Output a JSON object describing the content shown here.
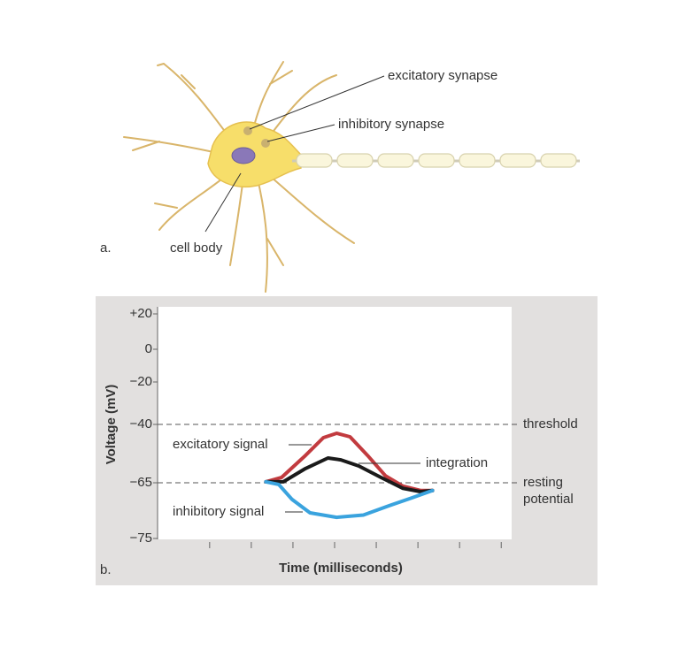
{
  "illustration": {
    "panel_label": "a.",
    "labels": [
      "excitatory synapse",
      "inhibitory synapse",
      "cell body"
    ]
  },
  "chart_data": {
    "type": "line",
    "panel_label": "b.",
    "xlabel": "Time (milliseconds)",
    "ylabel": "Voltage (mV)",
    "xlim": [
      -0.25,
      8.25
    ],
    "xticks": [
      1,
      2,
      3,
      4,
      5,
      6,
      7,
      8
    ],
    "ylim": [
      -75,
      20
    ],
    "yticks": [
      {
        "value": 20,
        "label": "+20"
      },
      0,
      {
        "value": -20,
        "label": "−20"
      },
      {
        "value": -40,
        "label": "−40"
      },
      {
        "value": -65,
        "label": "−65"
      },
      {
        "value": -75,
        "label": "−75"
      }
    ],
    "reference_lines": [
      {
        "value": -40,
        "label": [
          "threshold"
        ]
      },
      {
        "value": -65,
        "label": [
          "resting",
          "potential"
        ]
      }
    ],
    "series": [
      {
        "name": "excitatory signal",
        "color": "#c23b3f",
        "x": [
          2.35,
          2.73,
          3.3,
          3.73,
          4.05,
          4.37,
          4.79,
          5.22,
          5.64,
          6.07,
          6.35
        ],
        "values": [
          -64.6,
          -62.7,
          -53.3,
          -45.7,
          -43.8,
          -45.3,
          -53.3,
          -62.0,
          -65.6,
          -66.4,
          -66.4
        ]
      },
      {
        "name": "integration",
        "color": "#1a1a1a",
        "x": [
          2.35,
          2.77,
          3.3,
          3.84,
          4.15,
          4.58,
          5.11,
          5.64,
          6.07,
          6.35
        ],
        "values": [
          -64.6,
          -64.6,
          -58.9,
          -54.4,
          -55.2,
          -57.8,
          -62.7,
          -66.0,
          -66.6,
          -66.4
        ]
      },
      {
        "name": "inhibitory signal",
        "color": "#3aa3de",
        "x": [
          2.35,
          2.66,
          2.98,
          3.41,
          4.05,
          4.69,
          5.32,
          5.86,
          6.35
        ],
        "values": [
          -64.6,
          -65.3,
          -68.0,
          -70.4,
          -71.2,
          -70.8,
          -69.1,
          -67.7,
          -66.4
        ]
      }
    ]
  }
}
